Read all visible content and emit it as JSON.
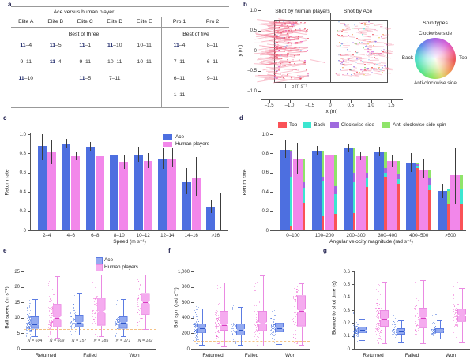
{
  "panels": {
    "a": {
      "label": "a"
    },
    "b": {
      "label": "b"
    },
    "c": {
      "label": "c"
    },
    "d": {
      "label": "d"
    },
    "e": {
      "label": "e"
    },
    "f": {
      "label": "f"
    },
    "g": {
      "label": "g"
    }
  },
  "colors": {
    "ace_blue": "#4d6fe0",
    "human_pink": "#f287ea",
    "spin_top_red": "#fa5257",
    "spin_back_cyan": "#3ce6d0",
    "spin_cw_purple": "#9f6ade",
    "spin_acw_green": "#8fe46a",
    "error_bar": "#3c3c3c",
    "axis": "#555555",
    "ref_line_orange": "#f2b469",
    "ace_box_fill": "#93aaf0",
    "ace_box_border": "#5c7ce2",
    "ace_dot": "#2e5cd8",
    "human_box_fill": "#f5abef",
    "human_box_border": "#ea8ae2",
    "human_dot": "#ec4ecc",
    "table_rule": "#999999",
    "bold_navy": "#1b2668"
  },
  "chart_data": [
    {
      "id": "a",
      "type": "table",
      "title": "Ace versus human player",
      "columns": [
        "Elite A",
        "Elite B",
        "Elite C",
        "Elite D",
        "Elite E",
        "Pro 1",
        "Pro 2"
      ],
      "group_subheaders": [
        {
          "label": "Best of three",
          "span": [
            0,
            4
          ]
        },
        {
          "label": "Best of five",
          "span": [
            5,
            6
          ]
        }
      ],
      "rows": [
        [
          "11–4",
          "11–5",
          "11–1",
          "11–10",
          "10–11",
          "11–4",
          "8–11"
        ],
        [
          "9–11",
          "11–4",
          "9–11",
          "10–11",
          "10–11",
          "7–11",
          "6–11"
        ],
        [
          "11–10",
          "",
          "11–5",
          "7–11",
          "",
          "6–11",
          "9–11"
        ],
        [
          "",
          "",
          "",
          "",
          "",
          "1–11",
          ""
        ]
      ],
      "bold_rule": "scores starting with 11 (Ace game wins) have the 11 in bold navy"
    },
    {
      "id": "b",
      "type": "scatter",
      "title_left": "Shot by human players",
      "title_right": "Shot by Ace",
      "xlabel": "x (m)",
      "ylabel": "y (m)",
      "xlim": [
        -1.72,
        1.72
      ],
      "ylim": [
        -1.18,
        1.18
      ],
      "xticks": [
        {
          "v": -1.5,
          "label": "–1.5"
        },
        {
          "v": -1.0,
          "label": "–1.0"
        },
        {
          "v": -0.5,
          "label": "–0.5"
        },
        {
          "v": 0,
          "label": "0"
        },
        {
          "v": 0.5,
          "label": "0.5"
        },
        {
          "v": 1.0,
          "label": "1.0"
        },
        {
          "v": 1.5,
          "label": "1.5"
        }
      ],
      "yticks": [
        {
          "v": 1.0,
          "label": "1.0"
        },
        {
          "v": 0.5,
          "label": "0.5"
        },
        {
          "v": 0,
          "label": "0"
        },
        {
          "v": -0.5,
          "label": "–0.5"
        },
        {
          "v": -1.0,
          "label": "–1.0"
        }
      ],
      "table_rect": {
        "x": [
          -1.37,
          1.37
        ],
        "y": [
          -0.76,
          0.76
        ]
      },
      "net_line_x": 0,
      "scale_annotation": "5 m s⁻¹",
      "wheel": {
        "title": "Spin types",
        "top_label": "Clockwise side",
        "right_label": "Top",
        "left_label": "Back",
        "bottom_label": "Anti-clockwise side"
      },
      "clusters": [
        {
          "name": "human",
          "seed": 7,
          "n": 175,
          "x": [
            -1.35,
            -0.5
          ],
          "y": [
            -0.72,
            0.73
          ],
          "edge_bias": 1.55,
          "palette": [
            [
              "#e4425c",
              38
            ],
            [
              "#f2607e",
              14
            ],
            [
              "#ef6fae",
              10
            ],
            [
              "#f7a8c0",
              8
            ],
            [
              "#e04fd0",
              5
            ],
            [
              "#9fc3f5",
              7
            ],
            [
              "#f3d8de",
              6
            ],
            [
              "#ef8668",
              5
            ],
            [
              "#b888e8",
              4
            ],
            [
              "#f7efe8",
              3
            ]
          ],
          "tail": {
            "len": [
              8,
              30
            ],
            "dir": -1,
            "color": "rgba(240,100,130,0.40)"
          },
          "extras": [
            [
              -0.12,
              -0.3
            ]
          ]
        },
        {
          "name": "ace",
          "seed": 11,
          "n": 152,
          "x": [
            0.15,
            1.4
          ],
          "y": [
            -0.62,
            0.7
          ],
          "edge_bias": 0,
          "palette": [
            [
              "#e8404f",
              16
            ],
            [
              "#f48fb8",
              11
            ],
            [
              "#e04fd0",
              8
            ],
            [
              "#f49a58",
              8
            ],
            [
              "#e8c858",
              5
            ],
            [
              "#7cd86a",
              7
            ],
            [
              "#48d8c8",
              8
            ],
            [
              "#90dff0",
              6
            ],
            [
              "#6888e8",
              8
            ],
            [
              "#a8c4f2",
              7
            ],
            [
              "#a06ae0",
              8
            ],
            [
              "#c8a8f0",
              6
            ],
            [
              "#f5d8e0",
              10
            ]
          ],
          "tail": {
            "len": [
              3,
              12
            ],
            "dir": 1,
            "color": "rgba(240,110,140,0.35)"
          },
          "extras": []
        }
      ]
    },
    {
      "id": "c",
      "type": "bar",
      "xlabel": "Speed (m s⁻¹)",
      "ylabel": "Return rate",
      "ylim": [
        0,
        1.0
      ],
      "yticks": [
        {
          "v": 0,
          "label": "0"
        },
        {
          "v": 0.2,
          "label": "0.2"
        },
        {
          "v": 0.4,
          "label": "0.4"
        },
        {
          "v": 0.6,
          "label": "0.6"
        },
        {
          "v": 0.8,
          "label": "0.8"
        },
        {
          "v": 1.0,
          "label": "1.0"
        }
      ],
      "categories": [
        "2–4",
        "4–6",
        "6–8",
        "8–10",
        "10–12",
        "12–14",
        "14–16",
        ">16"
      ],
      "series": [
        {
          "name": "Ace",
          "color": "#4d6fe0",
          "values": [
            0.88,
            0.9,
            0.87,
            0.79,
            0.79,
            0.74,
            0.51,
            0.25
          ],
          "err_lo": [
            0.73,
            0.86,
            0.83,
            0.71,
            0.71,
            0.64,
            0.38,
            0.18
          ],
          "err_hi": [
            1.0,
            0.95,
            0.92,
            0.88,
            0.87,
            0.85,
            0.65,
            0.31
          ]
        },
        {
          "name": "Human players",
          "color": "#f287ea",
          "values": [
            0.81,
            0.77,
            0.77,
            0.71,
            0.72,
            0.75,
            0.55,
            0.0
          ],
          "err_lo": [
            0.69,
            0.73,
            0.71,
            0.64,
            0.65,
            0.66,
            0.35,
            0.0
          ],
          "err_hi": [
            0.94,
            0.81,
            0.83,
            0.79,
            0.8,
            0.85,
            0.76,
            0.39
          ]
        }
      ],
      "legend_position": "upper right"
    },
    {
      "id": "d",
      "type": "bar",
      "xlabel": "Angular velocity magnitude (rad s⁻¹)",
      "ylabel": "Return rate",
      "ylim": [
        0,
        1.0
      ],
      "yticks": [
        {
          "v": 0,
          "label": "0"
        },
        {
          "v": 0.2,
          "label": "0.2"
        },
        {
          "v": 0.4,
          "label": "0.4"
        },
        {
          "v": 0.6,
          "label": "0.6"
        },
        {
          "v": 0.8,
          "label": "0.8"
        },
        {
          "v": 1.0,
          "label": "1.0"
        }
      ],
      "categories": [
        "0–100",
        "100–200",
        "200–300",
        "300–400",
        "400–500",
        ">500"
      ],
      "spin_legend": [
        {
          "name": "Top",
          "color": "#fa5257"
        },
        {
          "name": "Back",
          "color": "#3ce6d0"
        },
        {
          "name": "Clockwise side",
          "color": "#9f6ade"
        },
        {
          "name": "Anti-clockwise side spin",
          "color": "#8fe46a"
        }
      ],
      "series": [
        {
          "name": "Ace",
          "color": "#4d6fe0",
          "values": [
            0.84,
            0.83,
            0.85,
            0.82,
            0.7,
            0.41
          ],
          "err_lo": [
            0.75,
            0.78,
            0.81,
            0.77,
            0.61,
            0.34
          ],
          "err_hi": [
            0.94,
            0.88,
            0.89,
            0.87,
            0.8,
            0.48
          ],
          "spin_strip": [
            [
              0.05,
              0.56,
              0.83,
              0.84
            ],
            [
              0.15,
              0.52,
              0.56,
              0.83
            ],
            [
              0.18,
              0.51,
              0.6,
              0.85
            ],
            [
              0.56,
              0.6,
              0.65,
              0.82
            ],
            [
              0.65,
              0.67,
              0.69,
              0.7
            ],
            [
              0.28,
              0.43,
              0.41,
              0.41
            ]
          ]
        },
        {
          "name": "Human players",
          "color": "#f287ea",
          "values": [
            0.75,
            0.78,
            0.77,
            0.72,
            0.63,
            0.57
          ],
          "err_lo": [
            0.59,
            0.73,
            0.73,
            0.66,
            0.54,
            0.28
          ],
          "err_hi": [
            0.91,
            0.83,
            0.81,
            0.78,
            0.74,
            0.86
          ],
          "spin_strip": [
            [
              0.29,
              0.44,
              0.5,
              0.75
            ],
            [
              0.17,
              0.38,
              0.46,
              0.78
            ],
            [
              0.45,
              0.54,
              0.6,
              0.77
            ],
            [
              0.48,
              0.53,
              0.58,
              0.72
            ],
            [
              0.42,
              0.47,
              0.55,
              0.63
            ],
            [
              0.28,
              0.43,
              0.57,
              0.57
            ]
          ]
        }
      ],
      "spin_strip_order": [
        "Top",
        "Back",
        "Clockwise side",
        "Anti-clockwise side spin"
      ]
    },
    {
      "id": "e",
      "type": "box",
      "ylabel": "Ball speed (m s⁻¹)",
      "ylim": [
        0,
        25
      ],
      "yticks": [
        {
          "v": 0,
          "label": "0"
        },
        {
          "v": 5,
          "label": "5"
        },
        {
          "v": 10,
          "label": "10"
        },
        {
          "v": 15,
          "label": "15"
        },
        {
          "v": 20,
          "label": "20"
        },
        {
          "v": 25,
          "label": "25"
        }
      ],
      "categories": [
        "Returned",
        "Failed",
        "Won"
      ],
      "legend": [
        "Ace",
        "Human players"
      ],
      "ref_line": 6.5,
      "n_labels": [
        "N = 604",
        "N = 609",
        "N = 157",
        "N = 185",
        "N = 171",
        "N = 182"
      ],
      "boxes": {
        "ace": [
          {
            "whisker_lo": 4,
            "q1": 6.5,
            "median": 8,
            "q3": 10.5,
            "whisker_hi": 16,
            "pt_min": 3.5,
            "pt_max": 16.5,
            "cloud_n": 105
          },
          {
            "whisker_lo": 4.5,
            "q1": 7,
            "median": 8.5,
            "q3": 11,
            "whisker_hi": 18,
            "pt_min": 1,
            "pt_max": 18,
            "cloud_n": 55
          },
          {
            "whisker_lo": 4,
            "q1": 6.5,
            "median": 8.5,
            "q3": 10.5,
            "whisker_hi": 16,
            "pt_min": 3.5,
            "pt_max": 16,
            "cloud_n": 55
          }
        ],
        "human": [
          {
            "whisker_lo": 3.5,
            "q1": 7,
            "median": 10,
            "q3": 14.5,
            "whisker_hi": 23.5,
            "pt_min": 3,
            "pt_max": 24,
            "cloud_n": 105
          },
          {
            "whisker_lo": 4,
            "q1": 7.5,
            "median": 12,
            "q3": 16.5,
            "whisker_hi": 24,
            "pt_min": 3.5,
            "pt_max": 24,
            "cloud_n": 60
          },
          {
            "whisker_lo": 6.5,
            "q1": 11,
            "median": 15,
            "q3": 18,
            "whisker_hi": 24,
            "pt_min": 6,
            "pt_max": 24,
            "cloud_n": 60
          }
        ]
      }
    },
    {
      "id": "f",
      "type": "box",
      "ylabel": "Ball spin (rad s⁻¹)",
      "ylim": [
        0,
        1000
      ],
      "yticks": [
        {
          "v": 0,
          "label": "0"
        },
        {
          "v": 200,
          "label": "200"
        },
        {
          "v": 400,
          "label": "400"
        },
        {
          "v": 600,
          "label": "600"
        },
        {
          "v": 800,
          "label": "800"
        },
        {
          "v": 1000,
          "label": "1,000"
        }
      ],
      "categories": [
        "Returned",
        "Failed",
        "Won"
      ],
      "ref_line": 100,
      "boxes": {
        "ace": [
          {
            "whisker_lo": 50,
            "q1": 200,
            "median": 265,
            "q3": 330,
            "whisker_hi": 520,
            "pt_min": 40,
            "pt_max": 600,
            "cloud_n": 105
          },
          {
            "whisker_lo": 50,
            "q1": 175,
            "median": 245,
            "q3": 330,
            "whisker_hi": 540,
            "pt_min": 40,
            "pt_max": 720,
            "cloud_n": 55
          },
          {
            "whisker_lo": 60,
            "q1": 210,
            "median": 265,
            "q3": 340,
            "whisker_hi": 520,
            "pt_min": 50,
            "pt_max": 530,
            "cloud_n": 55
          }
        ],
        "human": [
          {
            "whisker_lo": 30,
            "q1": 235,
            "median": 310,
            "q3": 490,
            "whisker_hi": 860,
            "pt_min": 30,
            "pt_max": 870,
            "cloud_n": 105
          },
          {
            "whisker_lo": 40,
            "q1": 230,
            "median": 330,
            "q3": 490,
            "whisker_hi": 950,
            "pt_min": 40,
            "pt_max": 960,
            "cloud_n": 60
          },
          {
            "whisker_lo": 50,
            "q1": 290,
            "median": 490,
            "q3": 690,
            "whisker_hi": 850,
            "pt_min": 50,
            "pt_max": 860,
            "cloud_n": 60
          }
        ]
      }
    },
    {
      "id": "g",
      "type": "box",
      "ylabel": "Bounce to shot time (s)",
      "ylim": [
        0,
        0.6
      ],
      "yticks": [
        {
          "v": 0,
          "label": "0"
        },
        {
          "v": 0.1,
          "label": "0.1"
        },
        {
          "v": 0.2,
          "label": "0.2"
        },
        {
          "v": 0.3,
          "label": "0.3"
        },
        {
          "v": 0.4,
          "label": "0.4"
        },
        {
          "v": 0.5,
          "label": "0.5"
        },
        {
          "v": 0.6,
          "label": "0.6"
        }
      ],
      "categories": [
        "Returned",
        "Failed",
        "Won"
      ],
      "ref_line": null,
      "boxes": {
        "ace": [
          {
            "whisker_lo": 0.07,
            "q1": 0.12,
            "median": 0.145,
            "q3": 0.17,
            "whisker_hi": 0.23,
            "pt_min": 0.06,
            "pt_max": 0.3,
            "cloud_n": 105
          },
          {
            "whisker_lo": 0.05,
            "q1": 0.11,
            "median": 0.135,
            "q3": 0.16,
            "whisker_hi": 0.22,
            "pt_min": 0.05,
            "pt_max": 0.28,
            "cloud_n": 55
          },
          {
            "whisker_lo": 0.08,
            "q1": 0.12,
            "median": 0.14,
            "q3": 0.16,
            "whisker_hi": 0.22,
            "pt_min": 0.07,
            "pt_max": 0.29,
            "cloud_n": 55
          }
        ],
        "human": [
          {
            "whisker_lo": 0.04,
            "q1": 0.17,
            "median": 0.23,
            "q3": 0.3,
            "whisker_hi": 0.52,
            "pt_min": 0.04,
            "pt_max": 0.57,
            "cloud_n": 105
          },
          {
            "whisker_lo": 0.04,
            "q1": 0.16,
            "median": 0.24,
            "q3": 0.32,
            "whisker_hi": 0.53,
            "pt_min": 0.04,
            "pt_max": 0.55,
            "cloud_n": 60
          },
          {
            "whisker_lo": 0.05,
            "q1": 0.21,
            "median": 0.26,
            "q3": 0.31,
            "whisker_hi": 0.47,
            "pt_min": 0.05,
            "pt_max": 0.55,
            "cloud_n": 60
          }
        ]
      }
    }
  ]
}
